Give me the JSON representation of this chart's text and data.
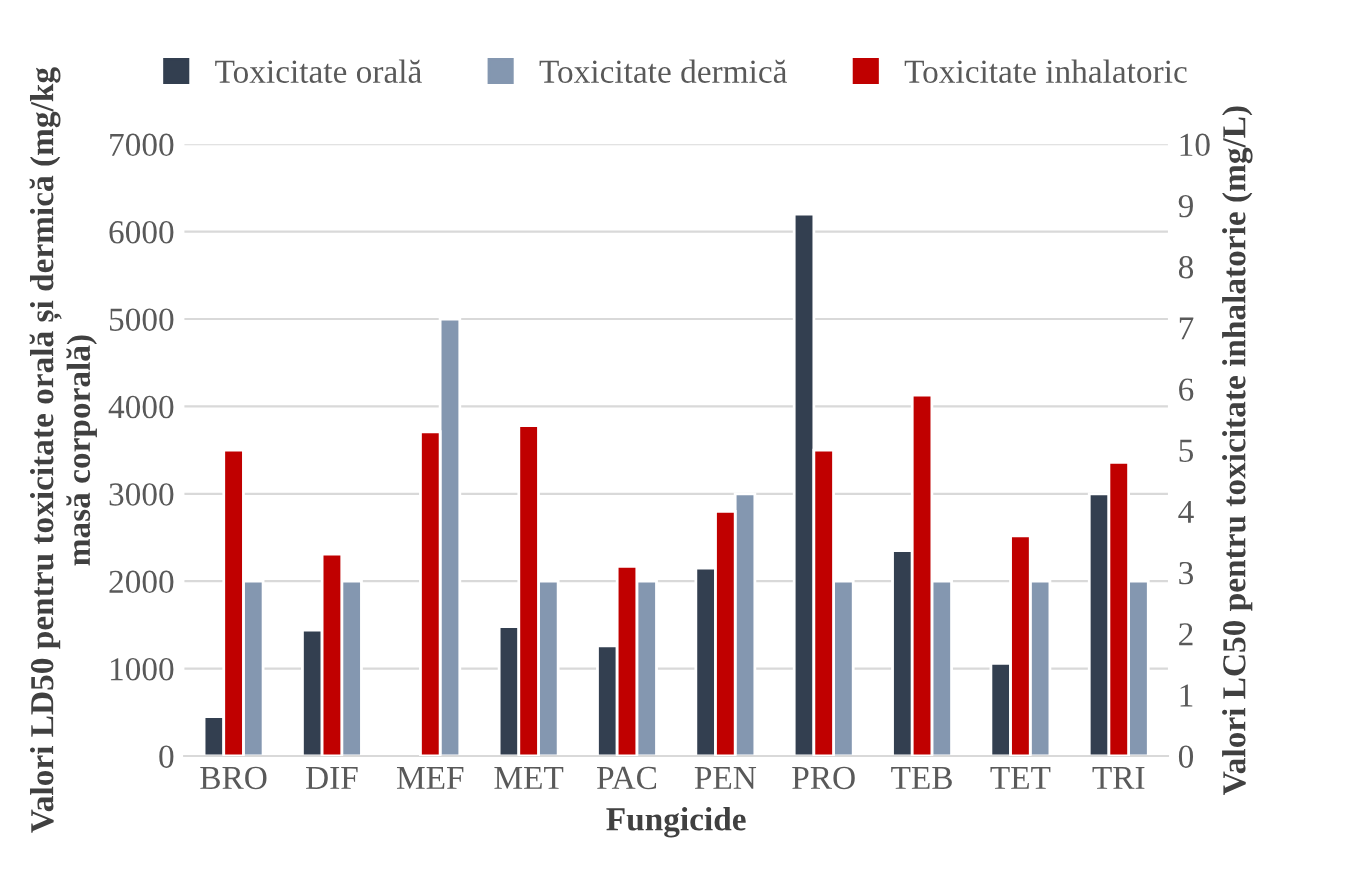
{
  "chart_data": {
    "type": "bar",
    "xlabel": "Fungicide",
    "ylabel": "Valori LD50 pentru toxicitate orală și dermică (mg/kg masă corporală)",
    "y2label": "Valori LC50 pentru toxicitate inhalatorie (mg/L)",
    "categories": [
      "BRO",
      "DIF",
      "MEF",
      "MET",
      "PAC",
      "PEN",
      "PRO",
      "TEB",
      "TET",
      "TRI"
    ],
    "series": [
      {
        "name": "Toxicitate orală",
        "color": "#333f50",
        "values": [
          450,
          1440,
          null,
          1480,
          1260,
          2150,
          6200,
          2350,
          1060,
          3000
        ]
      },
      {
        "name": "Toxicitate dermică",
        "color": "#8497b0",
        "values": [
          2000,
          2000,
          5000,
          2000,
          2000,
          3000,
          2000,
          2000,
          2000,
          2000
        ]
      },
      {
        "name": "Toxicitate inhalatoric",
        "color": "#c00000",
        "axis": "y2",
        "values": [
          5.0,
          3.3,
          5.3,
          5.4,
          3.1,
          4.0,
          5.0,
          5.9,
          3.6,
          4.8
        ]
      }
    ],
    "ylim": [
      0,
      7000
    ],
    "yticks": [
      0,
      1000,
      2000,
      3000,
      4000,
      5000,
      6000,
      7000
    ],
    "y2lim": [
      0,
      10
    ],
    "y2ticks": [
      0,
      1,
      2,
      3,
      4,
      5,
      6,
      7,
      8,
      9,
      10
    ],
    "grid": "y",
    "legend": "top"
  }
}
